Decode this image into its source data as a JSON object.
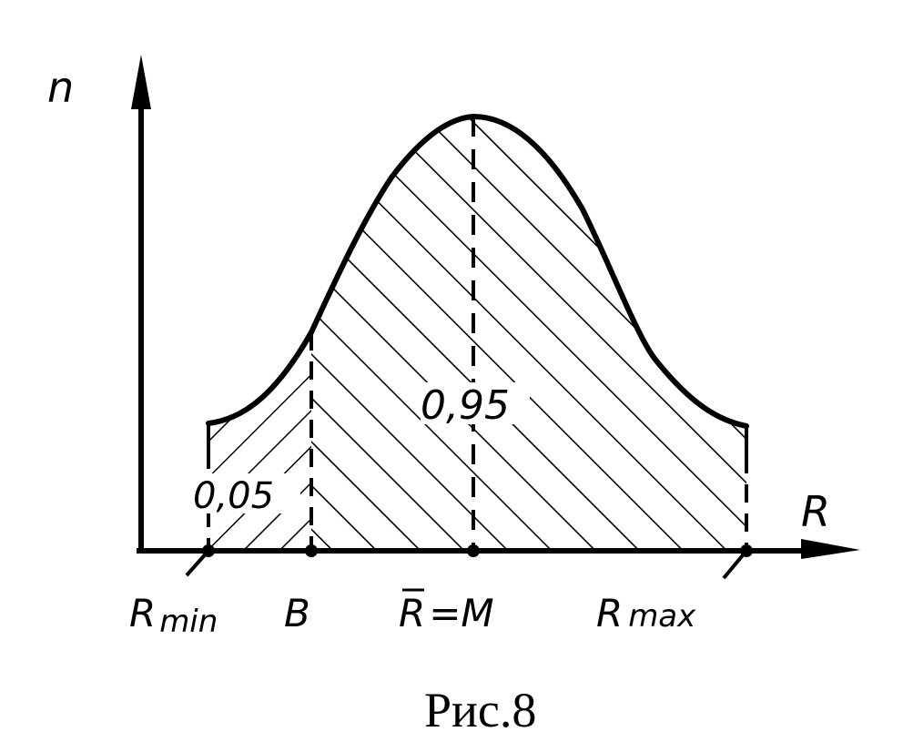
{
  "figure": {
    "y_axis_label": "n",
    "x_axis_label": "R",
    "area_small_label": "0,05",
    "area_large_label": "0,95",
    "tick_labels": {
      "r_min": {
        "main": "R",
        "sub": "min"
      },
      "b": "B",
      "mean": {
        "rbar": "R",
        "rest": "=M"
      },
      "r_max": {
        "main": "R",
        "sub": "max"
      }
    },
    "caption": "Рис.8"
  }
}
